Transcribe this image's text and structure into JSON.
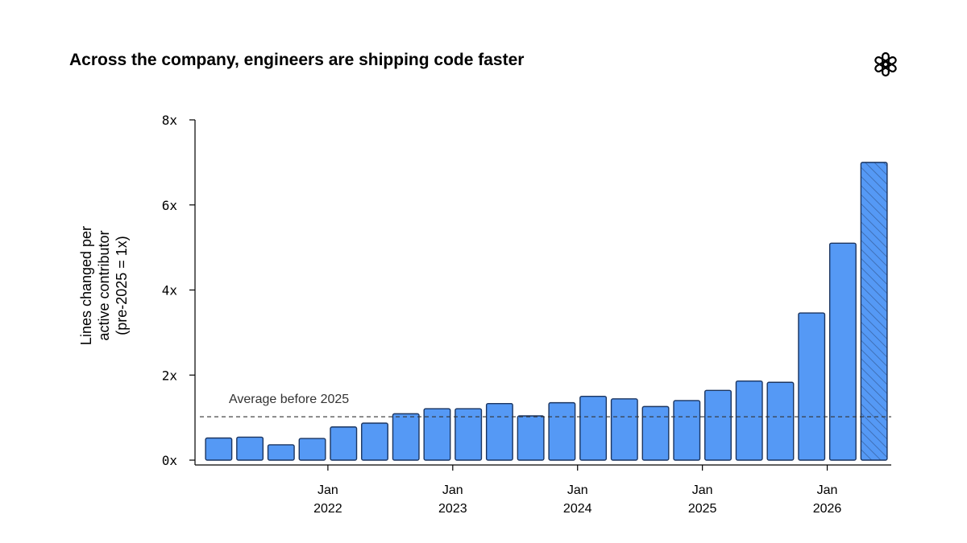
{
  "chart_data": {
    "type": "bar",
    "title": "Across the company, engineers are shipping code faster",
    "ylabel": [
      "Lines changed per",
      "active contributor",
      "(pre-2025 = 1x)"
    ],
    "ylim": [
      0,
      8
    ],
    "yticks": [
      {
        "value": 0,
        "label": "0x"
      },
      {
        "value": 2,
        "label": "2x"
      },
      {
        "value": 4,
        "label": "4x"
      },
      {
        "value": 6,
        "label": "6x"
      },
      {
        "value": 8,
        "label": "8x"
      }
    ],
    "xticks": [
      {
        "after_bar": 3,
        "line1": "Jan",
        "line2": "2022"
      },
      {
        "after_bar": 7,
        "line1": "Jan",
        "line2": "2023"
      },
      {
        "after_bar": 11,
        "line1": "Jan",
        "line2": "2024"
      },
      {
        "after_bar": 15,
        "line1": "Jan",
        "line2": "2025"
      },
      {
        "after_bar": 19,
        "line1": "Jan",
        "line2": "2026"
      }
    ],
    "values": [
      0.52,
      0.54,
      0.36,
      0.51,
      0.78,
      0.87,
      1.09,
      1.21,
      1.21,
      1.33,
      1.04,
      1.35,
      1.5,
      1.44,
      1.26,
      1.4,
      1.64,
      1.86,
      1.83,
      3.46,
      5.1,
      7.0
    ],
    "hatched": [
      false,
      false,
      false,
      false,
      false,
      false,
      false,
      false,
      false,
      false,
      false,
      false,
      false,
      false,
      false,
      false,
      false,
      false,
      false,
      false,
      false,
      true
    ],
    "reference_line": {
      "value": 1.02,
      "label": "Average before 2025"
    },
    "grid": false,
    "colors": {
      "bar": "#5599f5",
      "edge": "#1b3560",
      "hatch": "#3a66a8",
      "axis": "#000000"
    }
  },
  "logo": {
    "icon": "openai-logo-icon"
  }
}
